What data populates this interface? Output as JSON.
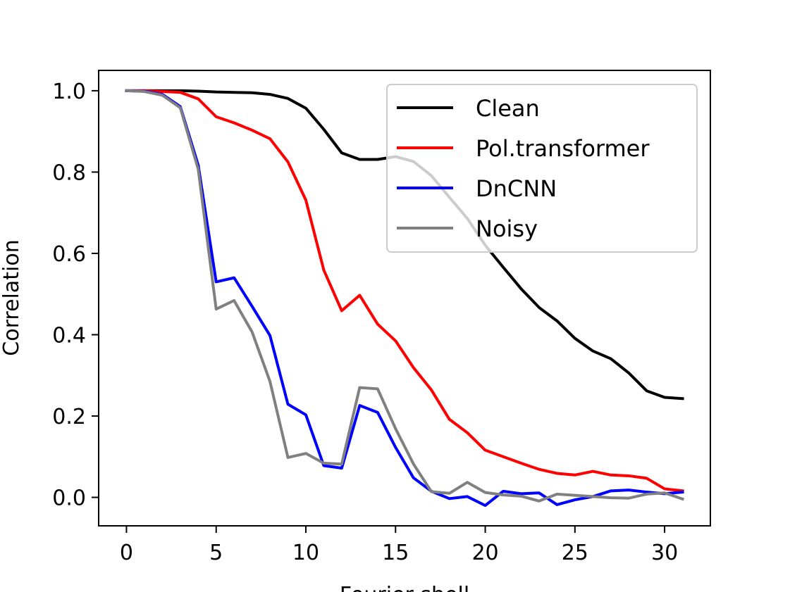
{
  "chart_data": {
    "type": "line",
    "title": "",
    "xlabel": "Fourier shell",
    "ylabel": "Correlation",
    "xlim": [
      -1.55,
      32.55
    ],
    "ylim": [
      -0.07,
      1.05
    ],
    "xticks": [
      0,
      5,
      10,
      15,
      20,
      25,
      30
    ],
    "yticks": [
      0.0,
      0.2,
      0.4,
      0.6,
      0.8,
      1.0
    ],
    "xtick_labels": [
      "0",
      "5",
      "10",
      "15",
      "20",
      "25",
      "30"
    ],
    "ytick_labels": [
      "0.0",
      "0.2",
      "0.4",
      "0.6",
      "0.8",
      "1.0"
    ],
    "grid": false,
    "legend_position": "top-right",
    "x": [
      0,
      1,
      2,
      3,
      4,
      5,
      6,
      7,
      8,
      9,
      10,
      11,
      12,
      13,
      14,
      15,
      16,
      17,
      18,
      19,
      20,
      21,
      22,
      23,
      24,
      25,
      26,
      27,
      28,
      29,
      30,
      31
    ],
    "series": [
      {
        "name": "Clean",
        "color": "#000000",
        "values": [
          1.0,
          1.0,
          1.0,
          1.0,
          0.999,
          0.997,
          0.996,
          0.995,
          0.991,
          0.981,
          0.957,
          0.905,
          0.847,
          0.831,
          0.831,
          0.838,
          0.826,
          0.791,
          0.738,
          0.686,
          0.62,
          0.566,
          0.513,
          0.467,
          0.434,
          0.391,
          0.36,
          0.341,
          0.306,
          0.262,
          0.246,
          0.243
        ]
      },
      {
        "name": "Pol.transformer",
        "color": "#ff0000",
        "values": [
          1.0,
          1.0,
          0.998,
          0.996,
          0.98,
          0.936,
          0.921,
          0.903,
          0.882,
          0.825,
          0.731,
          0.559,
          0.459,
          0.497,
          0.426,
          0.385,
          0.319,
          0.264,
          0.192,
          0.159,
          0.116,
          0.1,
          0.084,
          0.069,
          0.059,
          0.055,
          0.064,
          0.055,
          0.053,
          0.047,
          0.021,
          0.016
        ]
      },
      {
        "name": "DnCNN",
        "color": "#0000ff",
        "values": [
          1.0,
          0.999,
          0.991,
          0.961,
          0.817,
          0.53,
          0.54,
          0.47,
          0.398,
          0.229,
          0.203,
          0.078,
          0.072,
          0.226,
          0.209,
          0.123,
          0.048,
          0.015,
          -0.003,
          0.002,
          -0.02,
          0.015,
          0.009,
          0.011,
          -0.018,
          -0.006,
          0.002,
          0.016,
          0.018,
          0.013,
          0.009,
          0.013
        ]
      },
      {
        "name": "Noisy",
        "color": "#808080",
        "values": [
          1.0,
          0.998,
          0.989,
          0.958,
          0.807,
          0.463,
          0.484,
          0.407,
          0.285,
          0.098,
          0.108,
          0.084,
          0.082,
          0.27,
          0.267,
          0.169,
          0.082,
          0.014,
          0.01,
          0.037,
          0.012,
          0.006,
          0.003,
          -0.009,
          0.008,
          0.005,
          0.002,
          -0.001,
          -0.002,
          0.008,
          0.011,
          -0.004
        ]
      }
    ]
  }
}
